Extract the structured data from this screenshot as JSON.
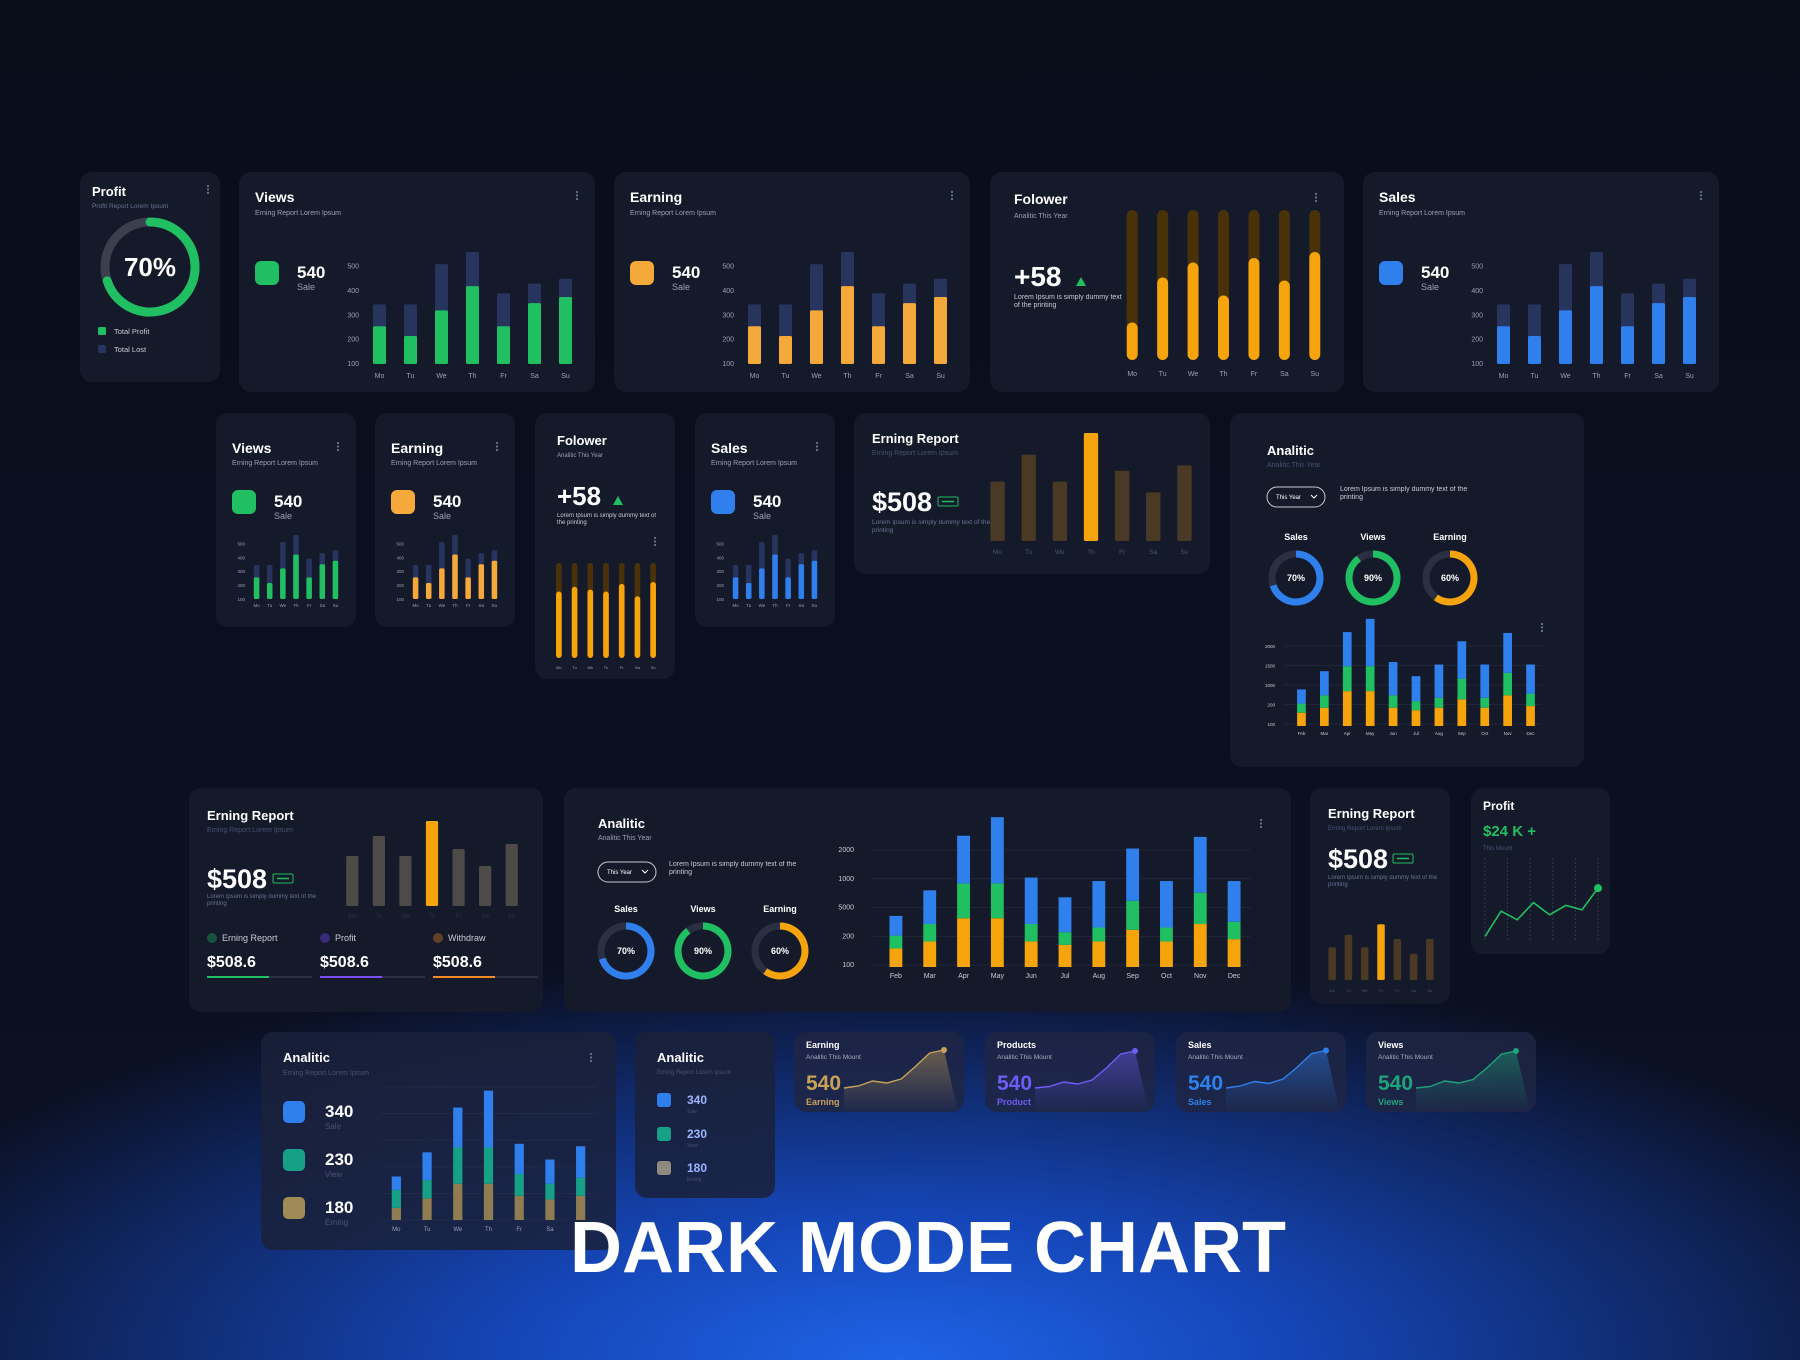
{
  "title": "DARK MODE CHART",
  "chart_data": [
    {
      "type": "donut",
      "title": "Profit",
      "subtitle": "Profit Report Lorem Ipsum",
      "value": 70,
      "value_label": "70%",
      "color": "#1fbf62",
      "track_color": "#3b3f4e",
      "legend": [
        {
          "name": "Total Profit",
          "color": "#1fbf62"
        },
        {
          "name": "Total Lost",
          "color": "#26345e"
        }
      ]
    },
    {
      "type": "bar",
      "title": "Views",
      "subtitle": "Erning Report Lorem Ipsum",
      "stat": 540,
      "stat_label": "Sale",
      "color": "#1fbf62",
      "categories": [
        "Mo",
        "Tu",
        "We",
        "Th",
        "Fr",
        "Sa",
        "Su"
      ],
      "ylim": [
        100,
        560
      ],
      "yticks": [
        100,
        200,
        300,
        400,
        500
      ],
      "series": [
        {
          "color": "#26345e",
          "values": [
            345,
            345,
            510,
            560,
            390,
            430,
            450
          ]
        },
        {
          "color": "#1fbf62",
          "values": [
            255,
            215,
            320,
            420,
            255,
            350,
            375
          ]
        }
      ]
    },
    {
      "type": "bar",
      "title": "Earning",
      "subtitle": "Erning Report Lorem Ipsum",
      "stat": 540,
      "stat_label": "Sale",
      "color": "#f5a93a",
      "categories": [
        "Mo",
        "Tu",
        "We",
        "Th",
        "Fr",
        "Sa",
        "Su"
      ],
      "ylim": [
        100,
        560
      ],
      "yticks": [
        100,
        200,
        300,
        400,
        500
      ],
      "series": [
        {
          "color": "#26345e",
          "values": [
            345,
            345,
            510,
            560,
            390,
            430,
            450
          ]
        },
        {
          "color": "#f5a93a",
          "values": [
            255,
            215,
            320,
            420,
            255,
            350,
            375
          ]
        }
      ]
    },
    {
      "type": "track",
      "title": "Folower",
      "subtitle": "Analitic This Year",
      "stat": "+58",
      "text": "Lorem Ipsum is simply dummy text of the printing",
      "categories": [
        "Mo",
        "Tu",
        "We",
        "Th",
        "Fr",
        "Sa",
        "Su"
      ],
      "ylim": [
        0,
        100
      ],
      "color": "#f5a40c",
      "track_color": "#4a3208",
      "values": [
        25,
        55,
        65,
        43,
        68,
        53,
        72
      ]
    },
    {
      "type": "bar",
      "title": "Sales",
      "subtitle": "Erning Report Lorem Ipsum",
      "stat": 540,
      "stat_label": "Sale",
      "color": "#2f80ed",
      "categories": [
        "Mo",
        "Tu",
        "We",
        "Th",
        "Fr",
        "Sa",
        "Su"
      ],
      "ylim": [
        100,
        560
      ],
      "yticks": [
        100,
        200,
        300,
        400,
        500
      ],
      "series": [
        {
          "color": "#26345e",
          "values": [
            345,
            345,
            510,
            560,
            390,
            430,
            450
          ]
        },
        {
          "color": "#2f80ed",
          "values": [
            255,
            215,
            320,
            420,
            255,
            350,
            375
          ]
        }
      ]
    },
    {
      "type": "bar",
      "title": "Views",
      "subtitle": "Erning Report Lorem Ipsum",
      "stat": 540,
      "stat_label": "Sale",
      "color": "#1fbf62",
      "categories": [
        "Mo",
        "Tu",
        "We",
        "Th",
        "Fr",
        "Sa",
        "Su"
      ],
      "ylim": [
        100,
        560
      ],
      "yticks": [
        100,
        200,
        300,
        400,
        500
      ],
      "series": [
        {
          "color": "#26345e",
          "values": [
            345,
            345,
            510,
            560,
            390,
            430,
            450
          ]
        },
        {
          "color": "#1fbf62",
          "values": [
            255,
            215,
            320,
            420,
            255,
            350,
            375
          ]
        }
      ]
    },
    {
      "type": "bar",
      "title": "Earning",
      "subtitle": "Erning Report Lorem Ipsum",
      "stat": 540,
      "stat_label": "Sale",
      "color": "#f5a93a",
      "categories": [
        "Mo",
        "Tu",
        "We",
        "Th",
        "Fr",
        "Sa",
        "Su"
      ],
      "ylim": [
        100,
        560
      ],
      "yticks": [
        100,
        200,
        300,
        400,
        500
      ],
      "series": [
        {
          "color": "#26345e",
          "values": [
            345,
            345,
            510,
            560,
            390,
            430,
            450
          ]
        },
        {
          "color": "#f5a93a",
          "values": [
            255,
            215,
            320,
            420,
            255,
            350,
            375
          ]
        }
      ]
    },
    {
      "type": "track",
      "title": "Folower",
      "subtitle": "Analitic This Year",
      "stat": "+58",
      "text": "Lorem Ipsum is simply dummy text of the printing",
      "categories": [
        "Mo",
        "Tu",
        "We",
        "Th",
        "Fr",
        "Sa",
        "Su"
      ],
      "ylim": [
        0,
        100
      ],
      "color": "#f5a40c",
      "track_color": "#4a3208",
      "values": [
        70,
        75,
        72,
        70,
        78,
        65,
        80
      ]
    },
    {
      "type": "bar",
      "title": "Sales",
      "subtitle": "Erning Report Lorem Ipsum",
      "stat": 540,
      "stat_label": "Sale",
      "color": "#2f80ed",
      "categories": [
        "Mo",
        "Tu",
        "We",
        "Th",
        "Fr",
        "Sa",
        "Su"
      ],
      "ylim": [
        100,
        560
      ],
      "yticks": [
        100,
        200,
        300,
        400,
        500
      ],
      "series": [
        {
          "color": "#26345e",
          "values": [
            345,
            345,
            510,
            560,
            390,
            430,
            450
          ]
        },
        {
          "color": "#2f80ed",
          "values": [
            255,
            215,
            320,
            420,
            255,
            350,
            375
          ]
        }
      ]
    },
    {
      "type": "highlight",
      "title": "Erning Report",
      "subtitle": "Erning Report Lorem Ipsum",
      "stat": "$508",
      "text": "Lorem Ipsum is simply dummy text of the printing",
      "categories": [
        "Mo",
        "Tu",
        "We",
        "Th",
        "Fr",
        "Sa",
        "Su"
      ],
      "ylim": [
        0,
        100
      ],
      "values": [
        55,
        80,
        55,
        100,
        65,
        45,
        70
      ],
      "colors": [
        "#4a3a25",
        "#4a3a25",
        "#4a3a25",
        "#f5a40c",
        "#4a3a25",
        "#4a3a25",
        "#4a3a25"
      ]
    },
    {
      "type": "combo",
      "title": "Analitic",
      "subtitle": "Analitic This Year",
      "dropdown": "This Year",
      "text": "Lorem Ipsum is simply dummy text of the printing",
      "rings": [
        {
          "name": "Sales",
          "value": 70,
          "value_label": "70%",
          "color": "#2f80ed"
        },
        {
          "name": "Views",
          "value": 90,
          "value_label": "90%",
          "color": "#1fbf62"
        },
        {
          "name": "Earning",
          "value": 60,
          "value_label": "60%",
          "color": "#f5a40c"
        }
      ],
      "categories": [
        "Feb",
        "Mar",
        "Apr",
        "May",
        "Jun",
        "Jul",
        "Aug",
        "Sep",
        "Oct",
        "Nov",
        "Dec"
      ],
      "y_labels": [
        "2000",
        "1500",
        "1000",
        "200",
        "100"
      ],
      "ylim": [
        0,
        130
      ],
      "series": [
        {
          "color": "#f5a40c",
          "values": [
            16,
            22,
            42,
            42,
            22,
            19,
            22,
            32,
            22,
            37,
            24
          ]
        },
        {
          "color": "#1fbf62",
          "values": [
            11,
            15,
            30,
            30,
            15,
            11,
            12,
            25,
            12,
            27,
            15
          ]
        },
        {
          "color": "#2f80ed",
          "values": [
            17,
            29,
            41,
            57,
            40,
            30,
            40,
            45,
            40,
            48,
            35
          ]
        }
      ]
    },
    {
      "type": "highlight",
      "title": "Erning Report",
      "subtitle": "Erning Report Lorem Ipsum",
      "stat": "$508",
      "text": "Lorem Ipsum is simply dummy text of the printing",
      "categories": [
        "Mo",
        "Tu",
        "We",
        "Th",
        "Fr",
        "Sa",
        "Su"
      ],
      "ylim": [
        0,
        100
      ],
      "values": [
        50,
        70,
        50,
        85,
        57,
        40,
        62
      ],
      "colors": [
        "#4d4a47",
        "#4d4a47",
        "#4d4a47",
        "#f5a40c",
        "#4d4a47",
        "#4d4a47",
        "#4d4a47"
      ],
      "stats": [
        {
          "name": "Erning Report",
          "value": "$508.6",
          "color": "#1fbf62"
        },
        {
          "name": "Profit",
          "value": "$508.6",
          "color": "#7b4dff"
        },
        {
          "name": "Withdraw",
          "value": "$508.6",
          "color": "#f08a24"
        }
      ]
    },
    {
      "type": "combo",
      "title": "Analitic",
      "subtitle": "Analitic This Year",
      "dropdown": "This Year",
      "text": "Lorem Ipsum is simply dummy text of the printing",
      "rings": [
        {
          "name": "Sales",
          "value": 70,
          "value_label": "70%",
          "color": "#2f80ed"
        },
        {
          "name": "Views",
          "value": 90,
          "value_label": "90%",
          "color": "#1fbf62"
        },
        {
          "name": "Earning",
          "value": 60,
          "value_label": "60%",
          "color": "#f5a40c"
        }
      ],
      "categories": [
        "Feb",
        "Mar",
        "Apr",
        "May",
        "Jun",
        "Jul",
        "Aug",
        "Sep",
        "Oct",
        "Nov",
        "Dec"
      ],
      "y_labels": [
        "2000",
        "1000",
        "5000",
        "200",
        "100"
      ],
      "ylim": [
        0,
        130
      ],
      "series": [
        {
          "color": "#f5a40c",
          "values": [
            16,
            22,
            42,
            42,
            22,
            19,
            22,
            32,
            22,
            37,
            24
          ]
        },
        {
          "color": "#1fbf62",
          "values": [
            11,
            15,
            30,
            30,
            15,
            11,
            12,
            25,
            12,
            27,
            15
          ]
        },
        {
          "color": "#2f80ed",
          "values": [
            17,
            29,
            41,
            57,
            40,
            30,
            40,
            45,
            40,
            48,
            35
          ]
        }
      ]
    },
    {
      "type": "highlight",
      "title": "Erning Report",
      "subtitle": "Erning Report Lorem Ipsum",
      "stat": "$508",
      "text": "Lorem Ipsum is simply dummy text of the printing",
      "categories": [
        "Mo",
        "Tu",
        "We",
        "Th",
        "Fr",
        "Sa",
        "Su"
      ],
      "ylim": [
        0,
        100
      ],
      "values": [
        40,
        55,
        40,
        68,
        50,
        32,
        50
      ],
      "colors": [
        "#4a3a25",
        "#4a3a25",
        "#4a3a25",
        "#f5a40c",
        "#4a3a25",
        "#4a3a25",
        "#4a3a25"
      ]
    },
    {
      "type": "line",
      "title": "Profit",
      "stat": "$24 K +",
      "subtitle": "This Mount",
      "color": "#1fbf62",
      "ylim": [
        0,
        100
      ],
      "values": [
        5,
        40,
        28,
        52,
        35,
        48,
        42,
        72
      ]
    },
    {
      "type": "stack",
      "title": "Analitic",
      "subtitle": "Erning Report Lorem Ipsum",
      "items": [
        {
          "value": 340,
          "label": "Sale",
          "color": "#2f80ed"
        },
        {
          "value": 230,
          "label": "View",
          "color": "#16a085"
        },
        {
          "value": 180,
          "label": "Erning",
          "color": "#a08a55"
        }
      ],
      "categories": [
        "Mo",
        "Tu",
        "We",
        "Th",
        "Fr",
        "Sa",
        "Su"
      ],
      "ylim": [
        0,
        110
      ],
      "series": [
        {
          "color": "#8f7c52",
          "values": [
            10,
            18,
            30,
            30,
            20,
            17,
            20
          ]
        },
        {
          "color": "#16a085",
          "values": [
            15,
            15,
            30,
            30,
            18,
            13,
            15
          ]
        },
        {
          "color": "#2f80ed",
          "values": [
            11,
            23,
            33,
            47,
            25,
            20,
            26
          ]
        }
      ]
    },
    {
      "type": "stack",
      "title": "Analitic",
      "subtitle": "Erning Report Lorem Ipsum",
      "items": [
        {
          "value": 340,
          "label": "Sale",
          "color": "#2f80ed"
        },
        {
          "value": 230,
          "label": "View",
          "color": "#16a085"
        },
        {
          "value": 180,
          "label": "Erning",
          "color": "#8f8a80"
        }
      ]
    },
    {
      "type": "area",
      "title": "Earning",
      "subtitle": "Analitic This Mount",
      "stat": 540,
      "stat_label": "Earning",
      "color": "#c9a25a",
      "ylim": [
        0,
        100
      ],
      "values": [
        12,
        16,
        26,
        22,
        30,
        55,
        82,
        88
      ]
    },
    {
      "type": "area",
      "title": "Products",
      "subtitle": "Analitic This Mount",
      "stat": 540,
      "stat_label": "Product",
      "color": "#6e5df5",
      "ylim": [
        0,
        100
      ],
      "values": [
        12,
        15,
        24,
        20,
        28,
        52,
        80,
        86
      ]
    },
    {
      "type": "area",
      "title": "Sales",
      "subtitle": "Analitic This Mount",
      "stat": 540,
      "stat_label": "Sales",
      "color": "#2f80ed",
      "ylim": [
        0,
        100
      ],
      "values": [
        12,
        16,
        25,
        21,
        30,
        54,
        81,
        87
      ]
    },
    {
      "type": "area",
      "title": "Views",
      "subtitle": "Analitic This Mount",
      "stat": 540,
      "stat_label": "Views",
      "color": "#1fa37a",
      "ylim": [
        0,
        100
      ],
      "values": [
        12,
        15,
        26,
        22,
        29,
        53,
        80,
        86
      ]
    }
  ]
}
